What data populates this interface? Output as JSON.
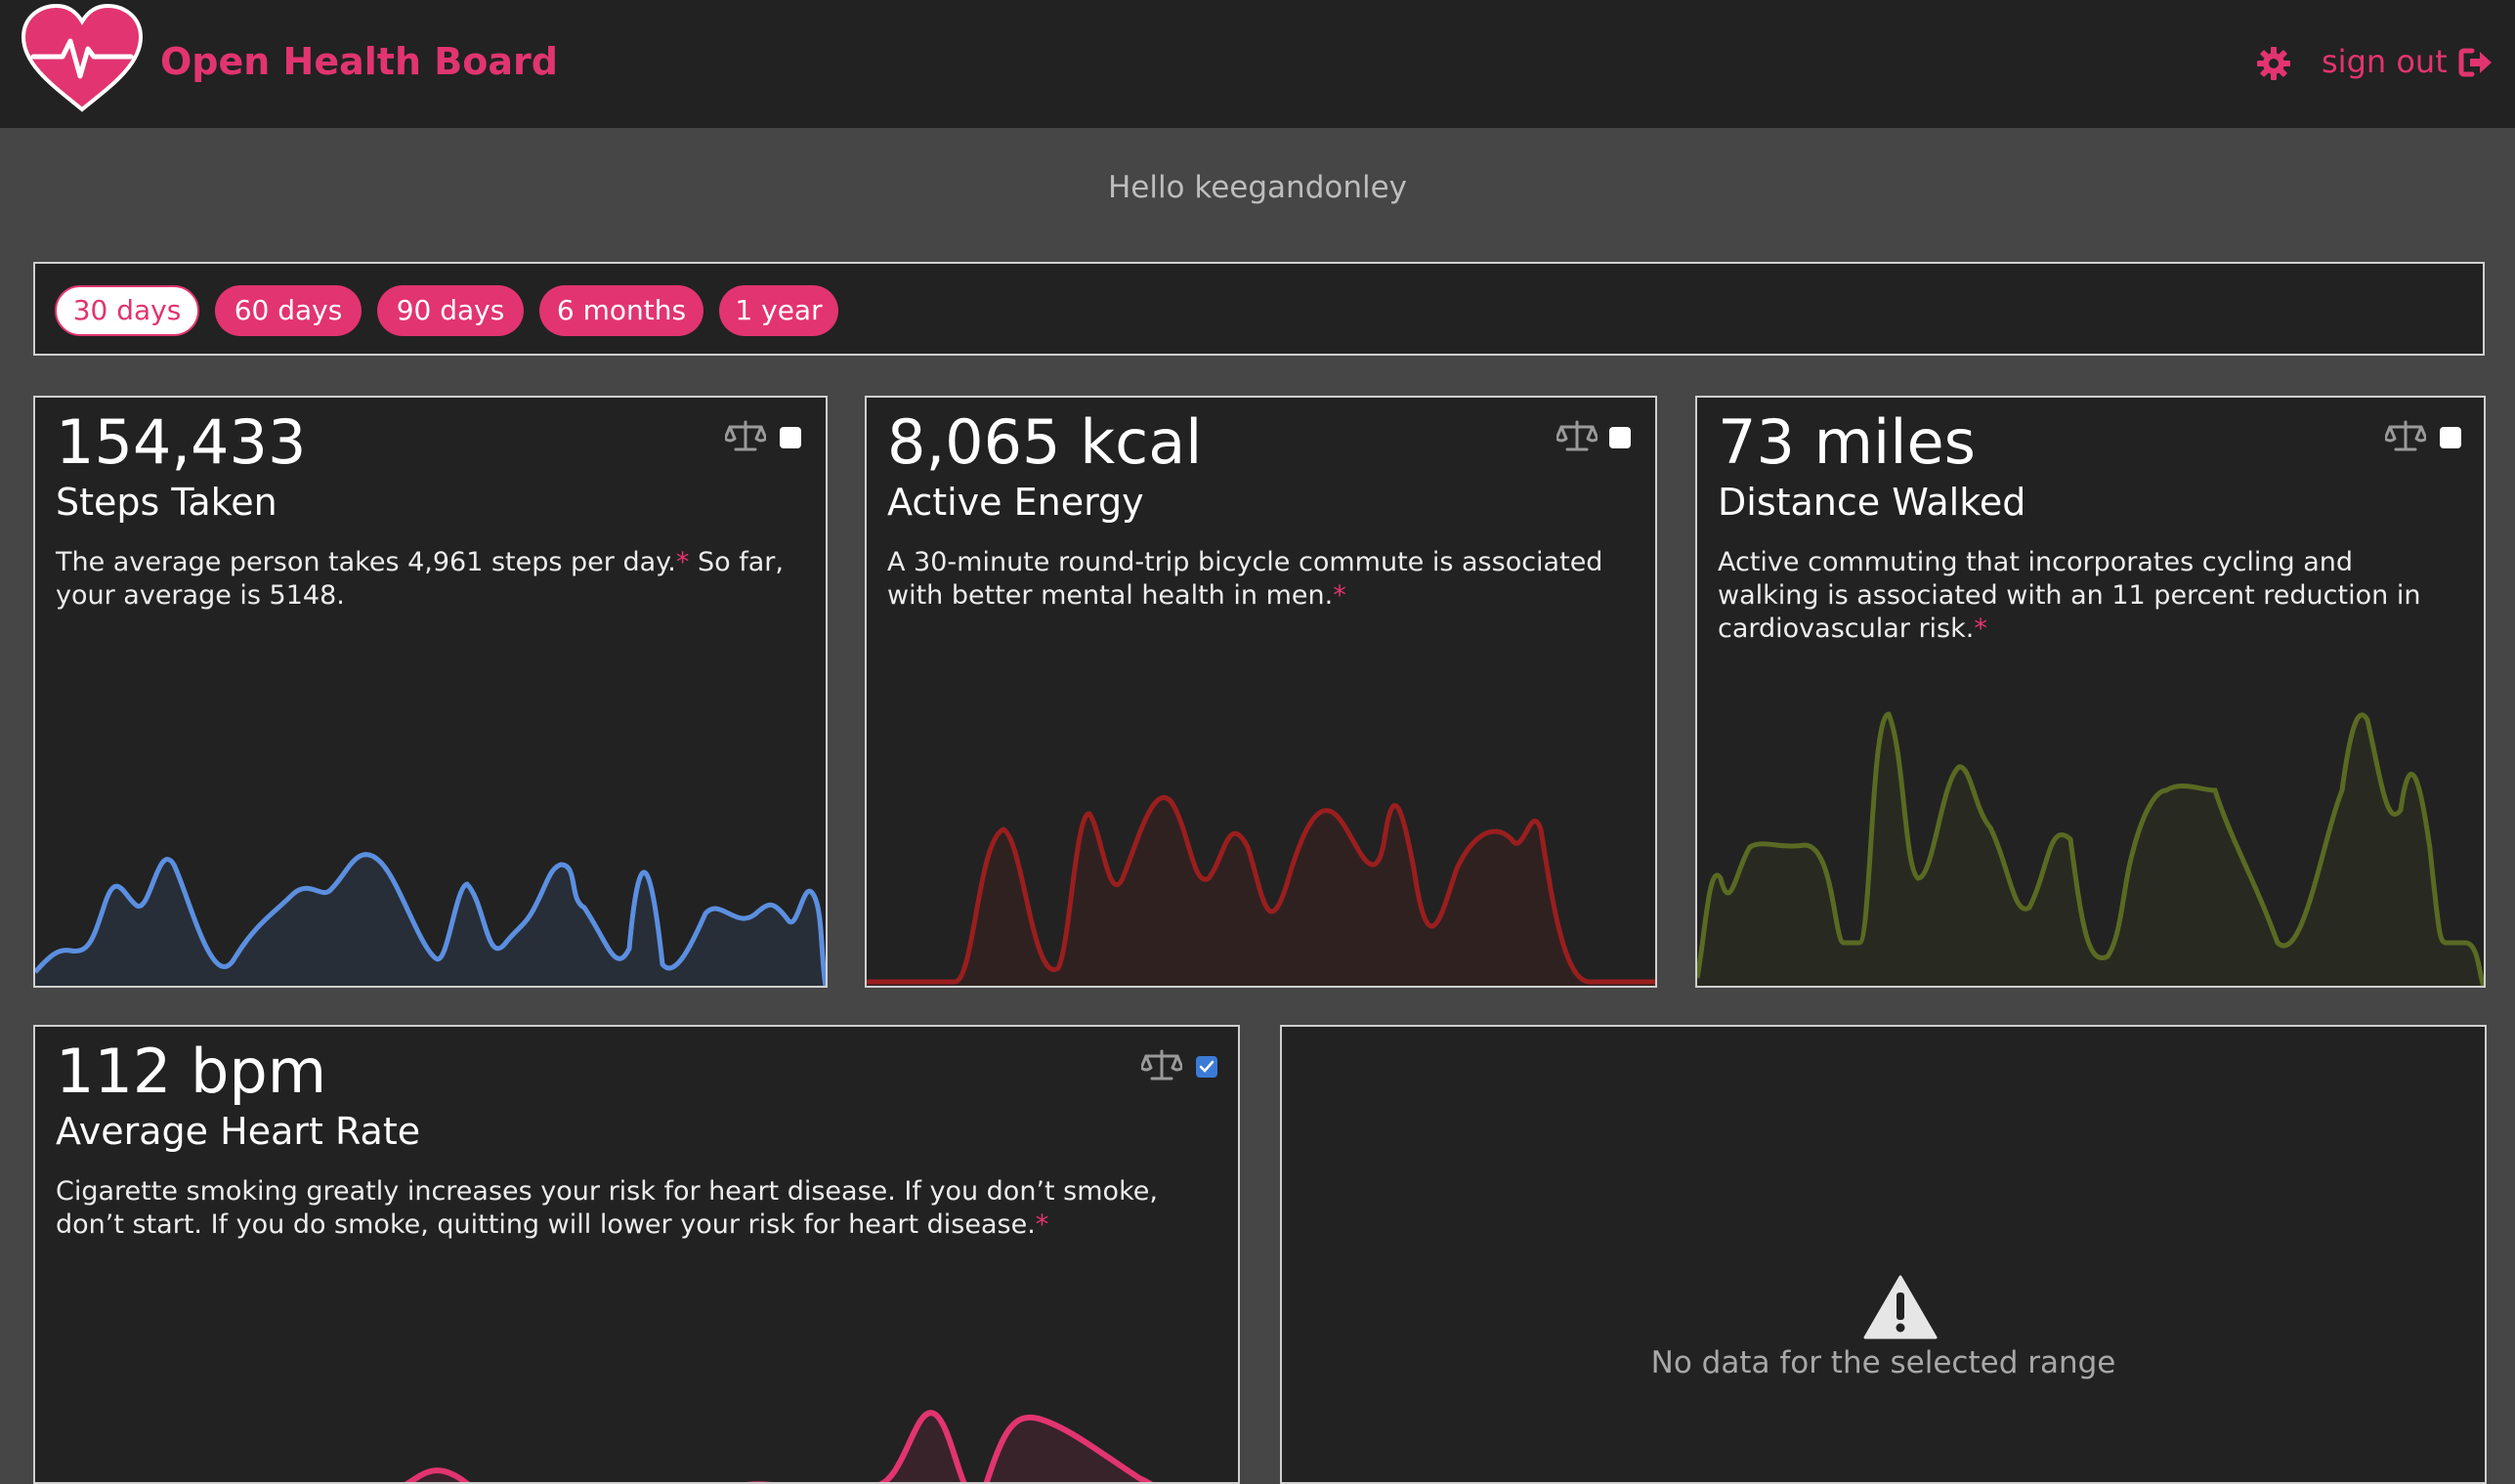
{
  "header": {
    "title": "Open Health Board",
    "signout_label": "sign out",
    "accent_color": "#e23470"
  },
  "greeting": "Hello keegandonley",
  "ranges": [
    {
      "label": "30 days",
      "active": true
    },
    {
      "label": "60 days",
      "active": false
    },
    {
      "label": "90 days",
      "active": false
    },
    {
      "label": "6 months",
      "active": false
    },
    {
      "label": "1 year",
      "active": false
    }
  ],
  "cards": {
    "steps": {
      "value": "154,433",
      "label": "Steps Taken",
      "desc": "The average person takes 4,961 steps per day.",
      "desc_tail": " So far, your average is 5148.",
      "asterisk": "*",
      "checked": false,
      "color": "#5b8fe0"
    },
    "energy": {
      "value": "8,065 kcal",
      "label": "Active Energy",
      "desc": "A 30-minute round-trip bicycle commute is associated with better mental health in men.",
      "asterisk": "*",
      "checked": false,
      "color": "#9a1e1e"
    },
    "distance": {
      "value": "73 miles",
      "label": "Distance Walked",
      "desc": "Active commuting that incorporates cycling and walking is associated with an 11 percent reduction in cardiovascular risk.",
      "asterisk": "*",
      "checked": false,
      "color": "#5a6a22"
    },
    "heart": {
      "value": "112 bpm",
      "label": "Average Heart Rate",
      "desc": "Cigarette smoking greatly increases your risk for heart disease. If you don’t smoke, don’t start. If you do smoke, quitting will lower your risk for heart disease.",
      "asterisk": "*",
      "checked": true,
      "color": "#e23470"
    }
  },
  "no_data": {
    "message": "No data for the selected range",
    "icon": "warning-icon"
  }
}
